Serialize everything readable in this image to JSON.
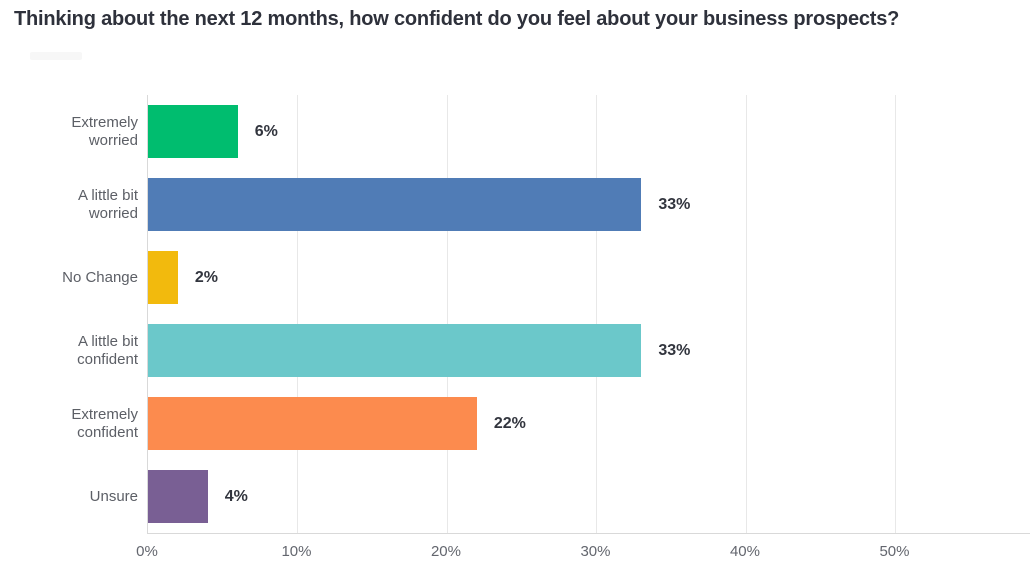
{
  "title": "Thinking about the next 12 months, how confident do you feel about your business prospects?",
  "chart_data": {
    "type": "bar",
    "orientation": "horizontal",
    "title": "Thinking about the next 12 months, how confident do you feel about your business prospects?",
    "categories": [
      "Extremely worried",
      "A little bit worried",
      "No Change",
      "A little bit confident",
      "Extremely confident",
      "Unsure"
    ],
    "category_lines": [
      [
        "Extremely",
        "worried"
      ],
      [
        "A little bit",
        "worried"
      ],
      [
        "No Change"
      ],
      [
        "A little bit",
        "confident"
      ],
      [
        "Extremely",
        "confident"
      ],
      [
        "Unsure"
      ]
    ],
    "values": [
      6,
      33,
      2,
      33,
      22,
      4
    ],
    "value_labels": [
      "6%",
      "33%",
      "2%",
      "33%",
      "22%",
      "4%"
    ],
    "bar_colors": [
      "#00bd6f",
      "#507cb6",
      "#f2ba0d",
      "#6bc8ca",
      "#fc8b4e",
      "#795f94"
    ],
    "x_ticks": [
      "0%",
      "10%",
      "20%",
      "30%",
      "40%",
      "50%"
    ],
    "x_tick_values": [
      0,
      10,
      20,
      30,
      40,
      50
    ],
    "axis_max": 59,
    "xlabel": "",
    "ylabel": "",
    "grid": true,
    "legend_position": "none"
  },
  "colors": {
    "background": "#ffffff",
    "title_text": "#2e313b",
    "category_text": "#5c5f66",
    "value_text": "#32353e",
    "tick_text": "#63666e",
    "gridline": "#e8e8e8",
    "axis_line": "#d9d9d9"
  }
}
